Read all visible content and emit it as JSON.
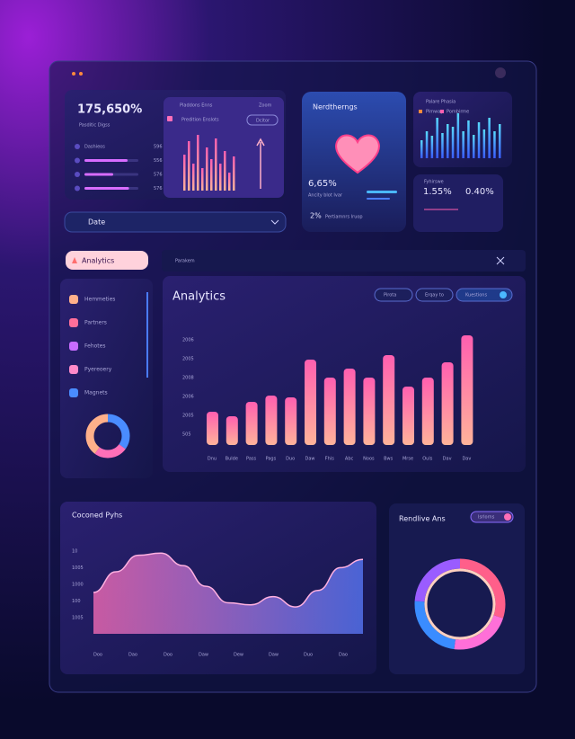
{
  "stats_card": {
    "value": "175,650%",
    "label": "Pasditic Digss",
    "rows": [
      {
        "label": "Dashieos",
        "value": "596",
        "fill": 72
      },
      {
        "label": "",
        "value": "556",
        "fill": 60
      },
      {
        "label": "",
        "value": "576",
        "fill": 40
      },
      {
        "label": "",
        "value": "576",
        "fill": 62
      }
    ],
    "mini_header": "Pladdons Enns",
    "mini_action": "Zoom",
    "mini_subtitle": "Predition Enslots",
    "mini_button": "Dcitor",
    "mini_bars": [
      40,
      55,
      30,
      62,
      25,
      48,
      35,
      58,
      30,
      44,
      20,
      38
    ],
    "dropdown": "Date"
  },
  "heart_card": {
    "title": "Nerdtherngs",
    "value": "6,65%",
    "caption": "Ancity blot Ivar",
    "footer_value": "2%",
    "footer_label": "Pertiamnrs Iruop"
  },
  "bars_card": {
    "header": "Palare Phasia",
    "legend": [
      "Pimway",
      "Pombirme"
    ],
    "bars": [
      20,
      30,
      25,
      45,
      28,
      38,
      35,
      50,
      30,
      42,
      26,
      40,
      32,
      45,
      30,
      38
    ]
  },
  "ratio_card": {
    "label": "Fyhirswe",
    "values": [
      "1.55%",
      "0.40%"
    ]
  },
  "sidebar": {
    "active": "Analytics",
    "items": [
      "Hemmeties",
      "Partners",
      "Fehotes",
      "Pyereoery",
      "Magnets"
    ],
    "donut": [
      35,
      25,
      40
    ]
  },
  "panel": {
    "breadcrumb": "Parakem",
    "title": "Analytics",
    "buttons": [
      "Pirota",
      "Erqay to",
      "Kuestions"
    ],
    "y_labels": [
      "2006",
      "2005",
      "2008",
      "2006",
      "2005",
      "505"
    ],
    "bars": [
      37,
      32,
      48,
      55,
      53,
      95,
      75,
      85,
      75,
      100,
      65,
      75,
      92,
      122
    ],
    "x_labels": [
      "Dnu",
      "Bulde",
      "Pass",
      "Pags",
      "Duo",
      "Daw",
      "Fhis",
      "Abc",
      "Noos",
      "Bws",
      "Mrse",
      "Ouls",
      "Dav",
      "Dav"
    ]
  },
  "wave_card": {
    "title": "Coconed Pyhs",
    "y_labels": [
      "10",
      "1005",
      "1000",
      "100",
      "1005"
    ],
    "x_labels": [
      "Doo",
      "Dao",
      "Doo",
      "Daw",
      "Dew",
      "Daw",
      "Duo",
      "Dao"
    ],
    "values": [
      40,
      60,
      76,
      78,
      66,
      46,
      30,
      28,
      36,
      26,
      42,
      64,
      72
    ]
  },
  "ring_card": {
    "title": "Rendlive Ans",
    "toggle": "Isrlorns",
    "segments": [
      30,
      22,
      24,
      24
    ]
  }
}
